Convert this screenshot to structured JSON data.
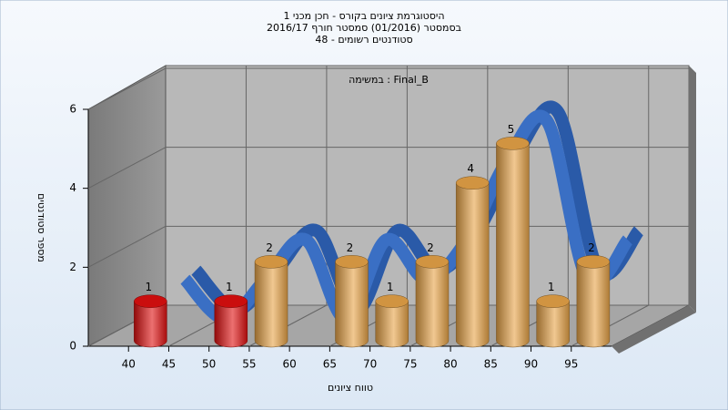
{
  "chart_data": {
    "type": "histogram",
    "title": "היסטוגרמת ציונים בקורס - חכן מכני 1",
    "subtitles": [
      "בסמסטר  (01/2016)  סמסטר חורף 2016/17",
      "סטודנטים רשומים - 48"
    ],
    "annotation": "במשימה : Final_B",
    "x_label": "טווח ציונים",
    "y_label": "מספר סטודנטים",
    "bins": [
      40,
      45,
      50,
      55,
      60,
      65,
      70,
      75,
      80,
      85,
      90,
      95,
      100
    ],
    "counts": [
      1,
      0,
      1,
      2,
      0,
      2,
      1,
      2,
      4,
      5,
      1,
      2
    ],
    "colors": [
      "#e01010",
      "#e01010",
      "#e01010",
      "#e8a448",
      "#e8a448",
      "#e8a448",
      "#e8a448",
      "#e8a448",
      "#e8a448",
      "#e8a448",
      "#e8a448",
      "#e8a448"
    ],
    "curve_color": "#3a6fc4",
    "xlim": [
      35,
      100
    ],
    "xticks": [
      40,
      45,
      50,
      55,
      60,
      65,
      70,
      75,
      80,
      85,
      90,
      95
    ],
    "ylim": [
      0,
      6
    ],
    "yticks": [
      0,
      2,
      4,
      6
    ],
    "grid": true
  }
}
